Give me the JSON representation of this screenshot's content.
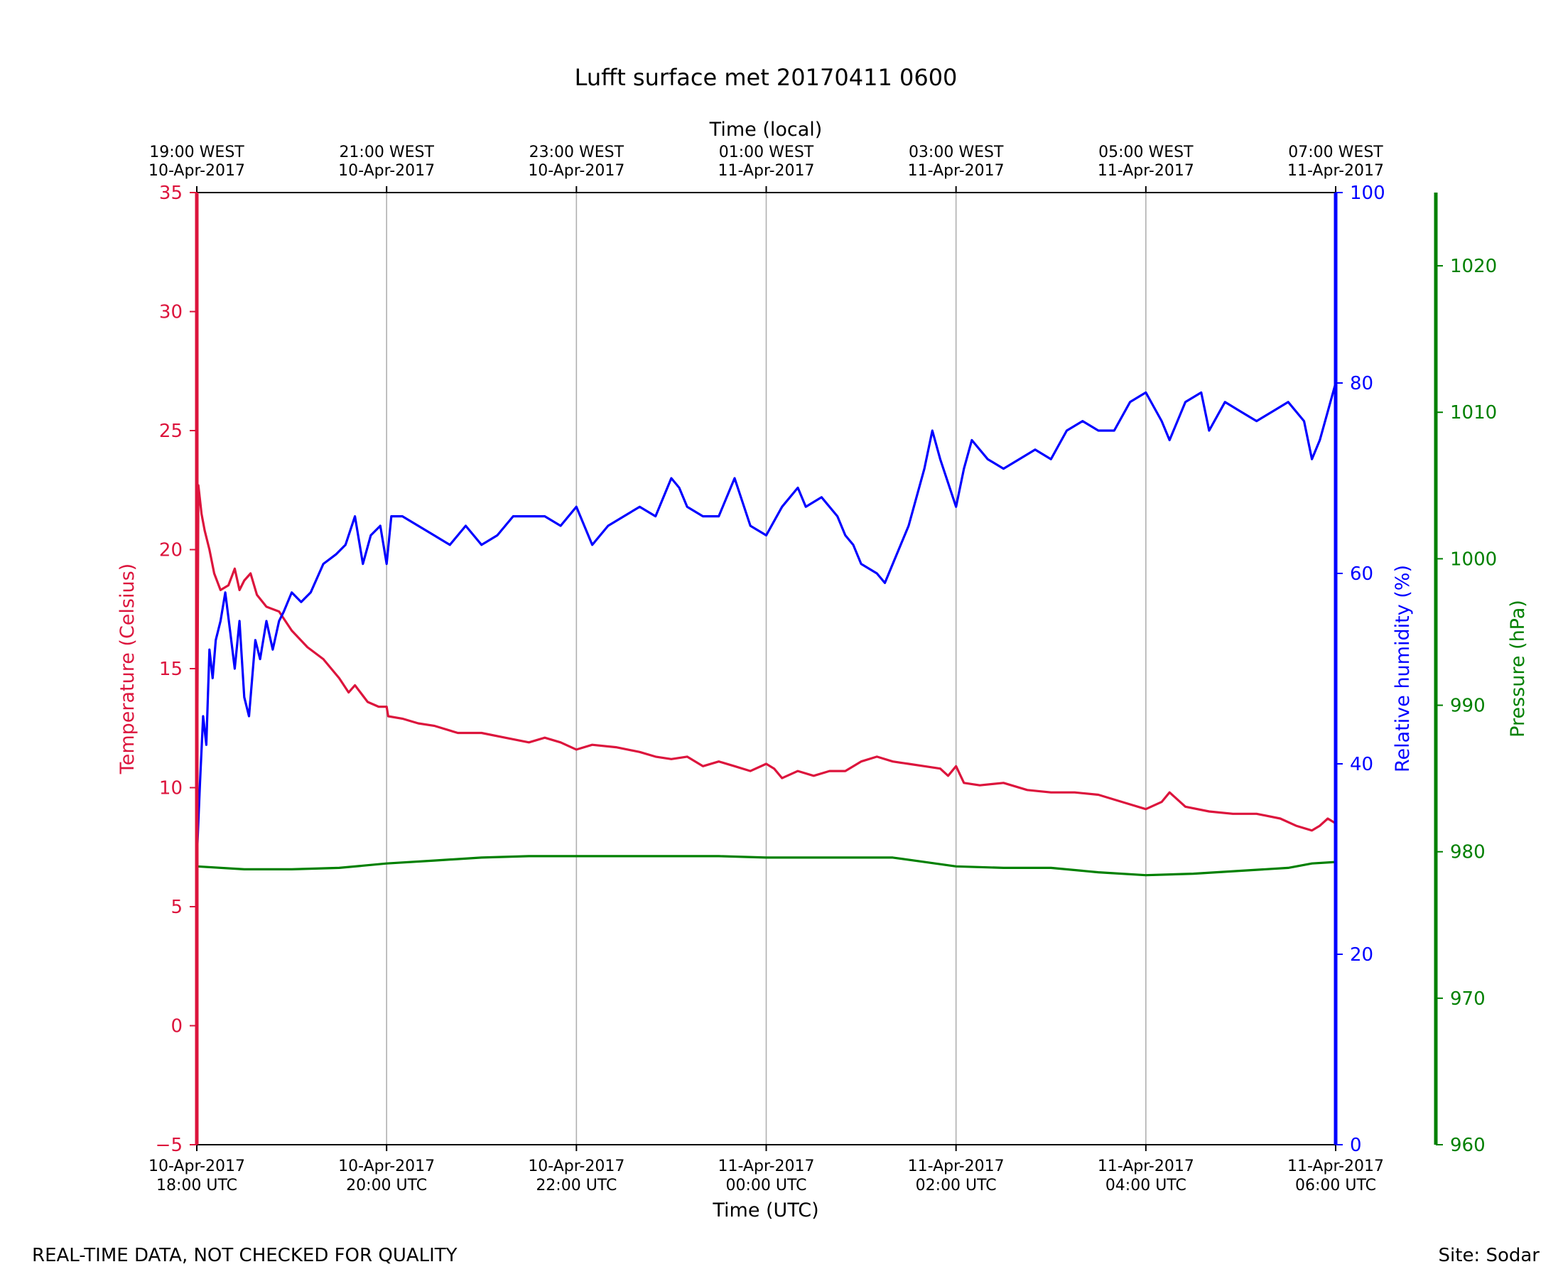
{
  "footer": {
    "left_note": "REAL-TIME DATA, NOT CHECKED FOR QUALITY",
    "right_note": "Site: Sodar"
  },
  "chart_data": {
    "type": "line",
    "title": "Lufft surface met 20170411 0600",
    "xlabel_bottom": "Time (UTC)",
    "xlabel_top": "Time (local)",
    "x_range": [
      "2017-04-10 18:00 UTC",
      "2017-04-11 06:00 UTC"
    ],
    "x_ticks_bottom": [
      {
        "time": "2017-04-10 18:00",
        "line1": "10-Apr-2017",
        "line2": "18:00 UTC"
      },
      {
        "time": "2017-04-10 20:00",
        "line1": "10-Apr-2017",
        "line2": "20:00 UTC"
      },
      {
        "time": "2017-04-10 22:00",
        "line1": "10-Apr-2017",
        "line2": "22:00 UTC"
      },
      {
        "time": "2017-04-11 00:00",
        "line1": "11-Apr-2017",
        "line2": "00:00 UTC"
      },
      {
        "time": "2017-04-11 02:00",
        "line1": "11-Apr-2017",
        "line2": "02:00 UTC"
      },
      {
        "time": "2017-04-11 04:00",
        "line1": "11-Apr-2017",
        "line2": "04:00 UTC"
      },
      {
        "time": "2017-04-11 06:00",
        "line1": "11-Apr-2017",
        "line2": "06:00 UTC"
      }
    ],
    "x_ticks_top": [
      {
        "time": "2017-04-10 18:00",
        "line1": "19:00 WEST",
        "line2": "10-Apr-2017"
      },
      {
        "time": "2017-04-10 20:00",
        "line1": "21:00 WEST",
        "line2": "10-Apr-2017"
      },
      {
        "time": "2017-04-10 22:00",
        "line1": "23:00 WEST",
        "line2": "10-Apr-2017"
      },
      {
        "time": "2017-04-11 00:00",
        "line1": "01:00 WEST",
        "line2": "11-Apr-2017"
      },
      {
        "time": "2017-04-11 02:00",
        "line1": "03:00 WEST",
        "line2": "11-Apr-2017"
      },
      {
        "time": "2017-04-11 04:00",
        "line1": "05:00 WEST",
        "line2": "11-Apr-2017"
      },
      {
        "time": "2017-04-11 06:00",
        "line1": "07:00 WEST",
        "line2": "11-Apr-2017"
      }
    ],
    "grid": "vertical",
    "axes": [
      {
        "id": "temp",
        "label": "Temperature (Celsius)",
        "color": "#dc143c",
        "side": "left",
        "range": [
          -5,
          35
        ],
        "ticks": [
          -5,
          0,
          5,
          10,
          15,
          20,
          25,
          30,
          35
        ]
      },
      {
        "id": "rh",
        "label": "Relative humidity (%)",
        "color": "#0000ff",
        "side": "right",
        "range": [
          0,
          100
        ],
        "ticks": [
          0,
          20,
          40,
          60,
          80,
          100
        ]
      },
      {
        "id": "pres",
        "label": "Pressure (hPa)",
        "color": "#008000",
        "side": "right-outer",
        "range": [
          960,
          1025
        ],
        "ticks": [
          960,
          970,
          980,
          990,
          1000,
          1010,
          1020
        ]
      }
    ],
    "series": [
      {
        "axis": "temp",
        "color": "#dc143c",
        "points": [
          [
            "2017-04-10 18:00",
            7.0
          ],
          [
            "2017-04-10 18:01",
            22.7
          ],
          [
            "2017-04-10 18:03",
            21.5
          ],
          [
            "2017-04-10 18:05",
            20.8
          ],
          [
            "2017-04-10 18:08",
            20.0
          ],
          [
            "2017-04-10 18:11",
            19.0
          ],
          [
            "2017-04-10 18:15",
            18.3
          ],
          [
            "2017-04-10 18:20",
            18.5
          ],
          [
            "2017-04-10 18:24",
            19.2
          ],
          [
            "2017-04-10 18:27",
            18.3
          ],
          [
            "2017-04-10 18:30",
            18.7
          ],
          [
            "2017-04-10 18:34",
            19.0
          ],
          [
            "2017-04-10 18:38",
            18.1
          ],
          [
            "2017-04-10 18:44",
            17.6
          ],
          [
            "2017-04-10 18:52",
            17.4
          ],
          [
            "2017-04-10 19:00",
            16.6
          ],
          [
            "2017-04-10 19:10",
            15.9
          ],
          [
            "2017-04-10 19:20",
            15.4
          ],
          [
            "2017-04-10 19:30",
            14.6
          ],
          [
            "2017-04-10 19:36",
            14.0
          ],
          [
            "2017-04-10 19:40",
            14.3
          ],
          [
            "2017-04-10 19:48",
            13.6
          ],
          [
            "2017-04-10 19:55",
            13.4
          ],
          [
            "2017-04-10 20:00",
            13.4
          ],
          [
            "2017-04-10 20:01",
            13.0
          ],
          [
            "2017-04-10 20:10",
            12.9
          ],
          [
            "2017-04-10 20:20",
            12.7
          ],
          [
            "2017-04-10 20:30",
            12.6
          ],
          [
            "2017-04-10 20:45",
            12.3
          ],
          [
            "2017-04-10 21:00",
            12.3
          ],
          [
            "2017-04-10 21:15",
            12.1
          ],
          [
            "2017-04-10 21:30",
            11.9
          ],
          [
            "2017-04-10 21:40",
            12.1
          ],
          [
            "2017-04-10 21:50",
            11.9
          ],
          [
            "2017-04-10 22:00",
            11.6
          ],
          [
            "2017-04-10 22:10",
            11.8
          ],
          [
            "2017-04-10 22:25",
            11.7
          ],
          [
            "2017-04-10 22:40",
            11.5
          ],
          [
            "2017-04-10 22:50",
            11.3
          ],
          [
            "2017-04-10 23:00",
            11.2
          ],
          [
            "2017-04-10 23:10",
            11.3
          ],
          [
            "2017-04-10 23:20",
            10.9
          ],
          [
            "2017-04-10 23:30",
            11.1
          ],
          [
            "2017-04-10 23:40",
            10.9
          ],
          [
            "2017-04-10 23:50",
            10.7
          ],
          [
            "2017-04-11 00:00",
            11.0
          ],
          [
            "2017-04-11 00:05",
            10.8
          ],
          [
            "2017-04-11 00:10",
            10.4
          ],
          [
            "2017-04-11 00:20",
            10.7
          ],
          [
            "2017-04-11 00:30",
            10.5
          ],
          [
            "2017-04-11 00:40",
            10.7
          ],
          [
            "2017-04-11 00:50",
            10.7
          ],
          [
            "2017-04-11 01:00",
            11.1
          ],
          [
            "2017-04-11 01:10",
            11.3
          ],
          [
            "2017-04-11 01:20",
            11.1
          ],
          [
            "2017-04-11 01:30",
            11.0
          ],
          [
            "2017-04-11 01:40",
            10.9
          ],
          [
            "2017-04-11 01:50",
            10.8
          ],
          [
            "2017-04-11 01:55",
            10.5
          ],
          [
            "2017-04-11 02:00",
            10.9
          ],
          [
            "2017-04-11 02:05",
            10.2
          ],
          [
            "2017-04-11 02:15",
            10.1
          ],
          [
            "2017-04-11 02:30",
            10.2
          ],
          [
            "2017-04-11 02:45",
            9.9
          ],
          [
            "2017-04-11 03:00",
            9.8
          ],
          [
            "2017-04-11 03:15",
            9.8
          ],
          [
            "2017-04-11 03:30",
            9.7
          ],
          [
            "2017-04-11 03:45",
            9.4
          ],
          [
            "2017-04-11 04:00",
            9.1
          ],
          [
            "2017-04-11 04:10",
            9.4
          ],
          [
            "2017-04-11 04:15",
            9.8
          ],
          [
            "2017-04-11 04:25",
            9.2
          ],
          [
            "2017-04-11 04:40",
            9.0
          ],
          [
            "2017-04-11 04:55",
            8.9
          ],
          [
            "2017-04-11 05:10",
            8.9
          ],
          [
            "2017-04-11 05:25",
            8.7
          ],
          [
            "2017-04-11 05:35",
            8.4
          ],
          [
            "2017-04-11 05:45",
            8.2
          ],
          [
            "2017-04-11 05:50",
            8.4
          ],
          [
            "2017-04-11 05:55",
            8.7
          ],
          [
            "2017-04-11 06:00",
            8.5
          ]
        ]
      },
      {
        "axis": "rh",
        "color": "#0000ff",
        "points": [
          [
            "2017-04-10 18:00",
            30
          ],
          [
            "2017-04-10 18:02",
            38
          ],
          [
            "2017-04-10 18:04",
            45
          ],
          [
            "2017-04-10 18:06",
            42
          ],
          [
            "2017-04-10 18:08",
            52
          ],
          [
            "2017-04-10 18:10",
            49
          ],
          [
            "2017-04-10 18:12",
            53
          ],
          [
            "2017-04-10 18:15",
            55
          ],
          [
            "2017-04-10 18:18",
            58
          ],
          [
            "2017-04-10 18:21",
            54
          ],
          [
            "2017-04-10 18:24",
            50
          ],
          [
            "2017-04-10 18:27",
            55
          ],
          [
            "2017-04-10 18:30",
            47
          ],
          [
            "2017-04-10 18:33",
            45
          ],
          [
            "2017-04-10 18:37",
            53
          ],
          [
            "2017-04-10 18:40",
            51
          ],
          [
            "2017-04-10 18:44",
            55
          ],
          [
            "2017-04-10 18:48",
            52
          ],
          [
            "2017-04-10 18:52",
            55
          ],
          [
            "2017-04-10 18:55",
            56
          ],
          [
            "2017-04-10 19:00",
            58
          ],
          [
            "2017-04-10 19:06",
            57
          ],
          [
            "2017-04-10 19:12",
            58
          ],
          [
            "2017-04-10 19:20",
            61
          ],
          [
            "2017-04-10 19:28",
            62
          ],
          [
            "2017-04-10 19:34",
            63
          ],
          [
            "2017-04-10 19:40",
            66
          ],
          [
            "2017-04-10 19:45",
            61
          ],
          [
            "2017-04-10 19:50",
            64
          ],
          [
            "2017-04-10 19:56",
            65
          ],
          [
            "2017-04-10 20:00",
            61
          ],
          [
            "2017-04-10 20:03",
            66
          ],
          [
            "2017-04-10 20:10",
            66
          ],
          [
            "2017-04-10 20:20",
            65
          ],
          [
            "2017-04-10 20:30",
            64
          ],
          [
            "2017-04-10 20:40",
            63
          ],
          [
            "2017-04-10 20:50",
            65
          ],
          [
            "2017-04-10 21:00",
            63
          ],
          [
            "2017-04-10 21:10",
            64
          ],
          [
            "2017-04-10 21:20",
            66
          ],
          [
            "2017-04-10 21:30",
            66
          ],
          [
            "2017-04-10 21:40",
            66
          ],
          [
            "2017-04-10 21:50",
            65
          ],
          [
            "2017-04-10 22:00",
            67
          ],
          [
            "2017-04-10 22:10",
            63
          ],
          [
            "2017-04-10 22:20",
            65
          ],
          [
            "2017-04-10 22:30",
            66
          ],
          [
            "2017-04-10 22:40",
            67
          ],
          [
            "2017-04-10 22:50",
            66
          ],
          [
            "2017-04-10 23:00",
            70
          ],
          [
            "2017-04-10 23:05",
            69
          ],
          [
            "2017-04-10 23:10",
            67
          ],
          [
            "2017-04-10 23:20",
            66
          ],
          [
            "2017-04-10 23:30",
            66
          ],
          [
            "2017-04-10 23:40",
            70
          ],
          [
            "2017-04-10 23:50",
            65
          ],
          [
            "2017-04-11 00:00",
            64
          ],
          [
            "2017-04-11 00:10",
            67
          ],
          [
            "2017-04-11 00:20",
            69
          ],
          [
            "2017-04-11 00:25",
            67
          ],
          [
            "2017-04-11 00:35",
            68
          ],
          [
            "2017-04-11 00:45",
            66
          ],
          [
            "2017-04-11 00:50",
            64
          ],
          [
            "2017-04-11 00:55",
            63
          ],
          [
            "2017-04-11 01:00",
            61
          ],
          [
            "2017-04-11 01:10",
            60
          ],
          [
            "2017-04-11 01:15",
            59
          ],
          [
            "2017-04-11 01:20",
            61
          ],
          [
            "2017-04-11 01:30",
            65
          ],
          [
            "2017-04-11 01:35",
            68
          ],
          [
            "2017-04-11 01:40",
            71
          ],
          [
            "2017-04-11 01:45",
            75
          ],
          [
            "2017-04-11 01:50",
            72
          ],
          [
            "2017-04-11 02:00",
            67
          ],
          [
            "2017-04-11 02:05",
            71
          ],
          [
            "2017-04-11 02:10",
            74
          ],
          [
            "2017-04-11 02:20",
            72
          ],
          [
            "2017-04-11 02:30",
            71
          ],
          [
            "2017-04-11 02:40",
            72
          ],
          [
            "2017-04-11 02:50",
            73
          ],
          [
            "2017-04-11 03:00",
            72
          ],
          [
            "2017-04-11 03:10",
            75
          ],
          [
            "2017-04-11 03:20",
            76
          ],
          [
            "2017-04-11 03:30",
            75
          ],
          [
            "2017-04-11 03:40",
            75
          ],
          [
            "2017-04-11 03:50",
            78
          ],
          [
            "2017-04-11 04:00",
            79
          ],
          [
            "2017-04-11 04:10",
            76
          ],
          [
            "2017-04-11 04:15",
            74
          ],
          [
            "2017-04-11 04:25",
            78
          ],
          [
            "2017-04-11 04:35",
            79
          ],
          [
            "2017-04-11 04:40",
            75
          ],
          [
            "2017-04-11 04:50",
            78
          ],
          [
            "2017-04-11 05:00",
            77
          ],
          [
            "2017-04-11 05:10",
            76
          ],
          [
            "2017-04-11 05:20",
            77
          ],
          [
            "2017-04-11 05:30",
            78
          ],
          [
            "2017-04-11 05:40",
            76
          ],
          [
            "2017-04-11 05:45",
            72
          ],
          [
            "2017-04-11 05:50",
            74
          ],
          [
            "2017-04-11 05:55",
            77
          ],
          [
            "2017-04-11 06:00",
            80
          ]
        ]
      },
      {
        "axis": "pres",
        "color": "#008000",
        "points": [
          [
            "2017-04-10 18:00",
            979.0
          ],
          [
            "2017-04-10 18:30",
            978.8
          ],
          [
            "2017-04-10 19:00",
            978.8
          ],
          [
            "2017-04-10 19:30",
            978.9
          ],
          [
            "2017-04-10 20:00",
            979.2
          ],
          [
            "2017-04-10 20:30",
            979.4
          ],
          [
            "2017-04-10 21:00",
            979.6
          ],
          [
            "2017-04-10 21:30",
            979.7
          ],
          [
            "2017-04-10 22:00",
            979.7
          ],
          [
            "2017-04-10 22:30",
            979.7
          ],
          [
            "2017-04-10 23:00",
            979.7
          ],
          [
            "2017-04-10 23:30",
            979.7
          ],
          [
            "2017-04-11 00:00",
            979.6
          ],
          [
            "2017-04-11 00:30",
            979.6
          ],
          [
            "2017-04-11 01:00",
            979.6
          ],
          [
            "2017-04-11 01:20",
            979.6
          ],
          [
            "2017-04-11 01:40",
            979.3
          ],
          [
            "2017-04-11 02:00",
            979.0
          ],
          [
            "2017-04-11 02:30",
            978.9
          ],
          [
            "2017-04-11 03:00",
            978.9
          ],
          [
            "2017-04-11 03:30",
            978.6
          ],
          [
            "2017-04-11 04:00",
            978.4
          ],
          [
            "2017-04-11 04:30",
            978.5
          ],
          [
            "2017-04-11 05:00",
            978.7
          ],
          [
            "2017-04-11 05:30",
            978.9
          ],
          [
            "2017-04-11 05:45",
            979.2
          ],
          [
            "2017-04-11 06:00",
            979.3
          ]
        ]
      }
    ]
  }
}
